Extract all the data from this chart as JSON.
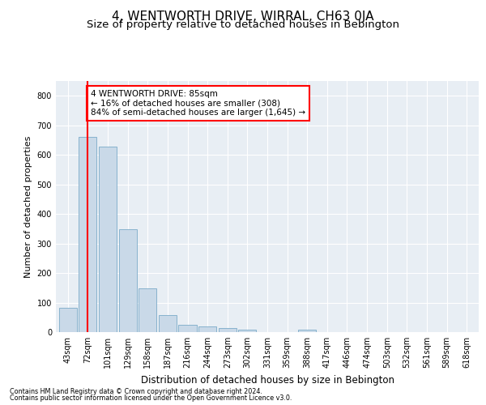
{
  "title": "4, WENTWORTH DRIVE, WIRRAL, CH63 0JA",
  "subtitle": "Size of property relative to detached houses in Bebington",
  "xlabel": "Distribution of detached houses by size in Bebington",
  "ylabel": "Number of detached properties",
  "categories": [
    "43sqm",
    "72sqm",
    "101sqm",
    "129sqm",
    "158sqm",
    "187sqm",
    "216sqm",
    "244sqm",
    "273sqm",
    "302sqm",
    "331sqm",
    "359sqm",
    "388sqm",
    "417sqm",
    "446sqm",
    "474sqm",
    "503sqm",
    "532sqm",
    "561sqm",
    "589sqm",
    "618sqm"
  ],
  "values": [
    83,
    660,
    627,
    348,
    147,
    58,
    24,
    20,
    13,
    9,
    0,
    0,
    8,
    0,
    0,
    0,
    0,
    0,
    0,
    0,
    0
  ],
  "bar_color": "#c9d9e8",
  "bar_edge_color": "#7aaac8",
  "property_line_x": 1.0,
  "annotation_text": "4 WENTWORTH DRIVE: 85sqm\n← 16% of detached houses are smaller (308)\n84% of semi-detached houses are larger (1,645) →",
  "annotation_box_color": "white",
  "annotation_box_edge": "red",
  "vline_color": "red",
  "ylim": [
    0,
    850
  ],
  "yticks": [
    0,
    100,
    200,
    300,
    400,
    500,
    600,
    700,
    800
  ],
  "plot_bg_color": "#e8eef4",
  "footer_line1": "Contains HM Land Registry data © Crown copyright and database right 2024.",
  "footer_line2": "Contains public sector information licensed under the Open Government Licence v3.0.",
  "title_fontsize": 11,
  "subtitle_fontsize": 9.5,
  "ylabel_fontsize": 8,
  "xlabel_fontsize": 8.5,
  "tick_fontsize": 7,
  "annotation_fontsize": 7.5
}
